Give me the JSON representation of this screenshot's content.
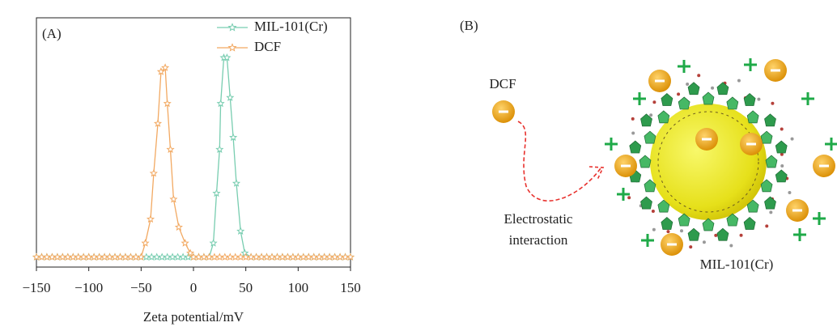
{
  "chart_data": {
    "type": "line",
    "panel_label": "(A)",
    "xlabel": "Zeta potential/mV",
    "xlim": [
      -150,
      150
    ],
    "ylim": [
      -5,
      120
    ],
    "xticks": [
      {
        "value": -150,
        "label": "−150"
      },
      {
        "value": -100,
        "label": "−100"
      },
      {
        "value": -50,
        "label": "−50"
      },
      0,
      50,
      100,
      150
    ],
    "legend": "upper right",
    "series": [
      {
        "name": "MIL-101(Cr)",
        "color": "#78cdb0",
        "x": [
          -150,
          -145,
          -140,
          -135,
          -130,
          -125,
          -120,
          -115,
          -110,
          -105,
          -100,
          -95,
          -90,
          -85,
          -80,
          -75,
          -70,
          -65,
          -60,
          -55,
          -50,
          -45,
          -40,
          -35,
          -30,
          -25,
          -20,
          -15,
          -10,
          -5,
          0,
          5,
          10,
          15,
          19,
          22,
          25,
          26,
          29,
          32,
          35,
          38,
          41,
          45,
          49,
          55,
          60,
          65,
          70,
          75,
          80,
          85,
          90,
          95,
          100,
          105,
          110,
          115,
          120,
          125,
          130,
          135,
          140,
          145,
          150
        ],
        "values": [
          0,
          0,
          0,
          0,
          0,
          0,
          0,
          0,
          0,
          0,
          0,
          0,
          0,
          0,
          0,
          0,
          0,
          0,
          0,
          0,
          0,
          0,
          0,
          0,
          0,
          0,
          0,
          0,
          0,
          0,
          0,
          0,
          0,
          0,
          7,
          32,
          54,
          77,
          100,
          100,
          80,
          60,
          37,
          13,
          2,
          0,
          0,
          0,
          0,
          0,
          0,
          0,
          0,
          0,
          0,
          0,
          0,
          0,
          0,
          0,
          0,
          0,
          0,
          0,
          0
        ]
      },
      {
        "name": "DCF",
        "color": "#f2a962",
        "x": [
          -150,
          -145,
          -140,
          -135,
          -130,
          -125,
          -120,
          -115,
          -110,
          -105,
          -100,
          -95,
          -90,
          -85,
          -80,
          -75,
          -70,
          -65,
          -60,
          -55,
          -50,
          -46,
          -41,
          -38,
          -34,
          -31,
          -27,
          -25,
          -22,
          -19,
          -14,
          -8,
          -3,
          0,
          5,
          10,
          15,
          20,
          25,
          30,
          35,
          40,
          45,
          50,
          55,
          60,
          65,
          70,
          75,
          80,
          85,
          90,
          95,
          100,
          105,
          110,
          115,
          120,
          125,
          130,
          135,
          140,
          145,
          150
        ],
        "values": [
          0,
          0,
          0,
          0,
          0,
          0,
          0,
          0,
          0,
          0,
          0,
          0,
          0,
          0,
          0,
          0,
          0,
          0,
          0,
          0,
          0,
          7,
          19,
          42,
          67,
          93,
          95,
          77,
          54,
          29,
          15,
          7,
          2,
          0,
          0,
          0,
          0,
          0,
          0,
          0,
          0,
          0,
          0,
          0,
          0,
          0,
          0,
          0,
          0,
          0,
          0,
          0,
          0,
          0,
          0,
          0,
          0,
          0,
          0,
          0,
          0,
          0,
          0,
          0
        ]
      }
    ]
  },
  "diagram": {
    "panel_label": "(B)",
    "dcf_label": "DCF",
    "interaction_label": [
      "Electrostatic",
      "interaction"
    ],
    "mof_label": "MIL-101(Cr)"
  }
}
